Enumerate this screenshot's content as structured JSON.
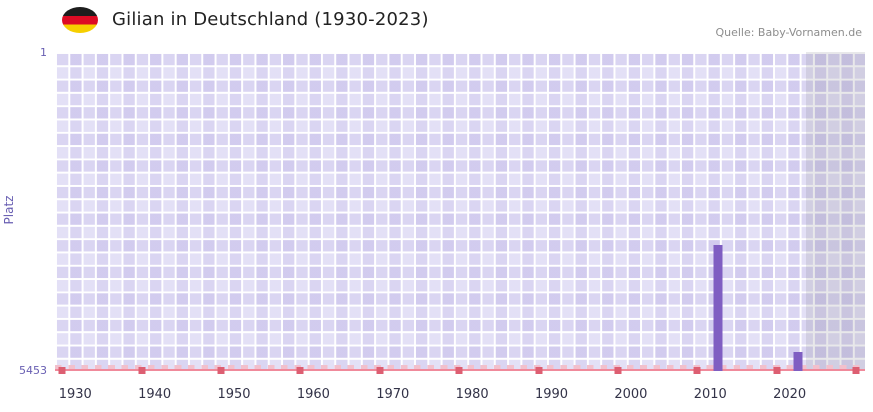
{
  "header": {
    "title": "Gilian in Deutschland (1930-2023)",
    "source": "Quelle: Baby-Vornamen.de"
  },
  "chart_data": {
    "type": "bar",
    "title": "Gilian in Deutschland (1930-2023)",
    "xlabel": "",
    "ylabel": "Platz",
    "y_axis": {
      "top_label": "1",
      "bottom_label": "5453",
      "min": 1,
      "max": 5453,
      "inverted": true
    },
    "x_ticks": [
      1930,
      1940,
      1950,
      1960,
      1970,
      1980,
      1990,
      2000,
      2010,
      2020
    ],
    "x_range_years": [
      1930,
      2023
    ],
    "x_map": {
      "base_year": 1930,
      "base_percent": 2.5,
      "percent_per_year": 0.98
    },
    "series": [
      {
        "name": "Platz",
        "points": [
          {
            "year": 2011,
            "rank": 3300
          },
          {
            "year": 2021,
            "rank": 5130
          }
        ]
      }
    ],
    "baseline_markers_percent": [
      0.9,
      10.7,
      20.5,
      30.3,
      40.1,
      49.9,
      59.7,
      69.5,
      79.3,
      89.1,
      98.9
    ],
    "recent_overlay_from_year": 2022,
    "legend": "none",
    "grid": "checkered",
    "colors": {
      "bar": "#7f5ec2",
      "axis_labels": "#685eb2",
      "baseline": "#f08a9b",
      "marker": "#dd5f72",
      "overlay": "rgba(125,125,140,0.18)"
    }
  }
}
